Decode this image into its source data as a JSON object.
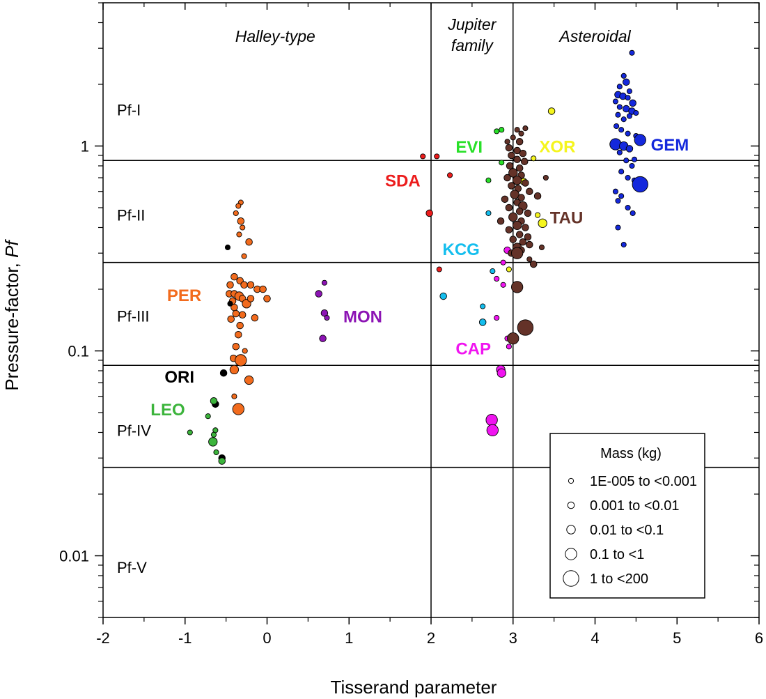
{
  "chart_data": {
    "type": "scatter",
    "xlabel": "Tisserand parameter",
    "ylabel_prefix": "Pressure-factor, ",
    "ylabel_italic": "Pf",
    "xlim": [
      -2,
      6
    ],
    "ylim": [
      0.005,
      5
    ],
    "yscale": "log",
    "xticks": [
      -2,
      -1,
      0,
      1,
      2,
      3,
      4,
      5,
      6
    ],
    "xtick_labels": [
      "-2",
      "-1",
      "0",
      "1",
      "2",
      "3",
      "4",
      "5",
      "6"
    ],
    "yticks": [
      0.01,
      0.1,
      1
    ],
    "ytick_labels": [
      "0.01",
      "0.1",
      "1"
    ],
    "vertical_lines": [
      2,
      3
    ],
    "horizontal_lines": [
      0.85,
      0.27,
      0.085,
      0.027
    ],
    "regions": [
      {
        "label": "Halley-type",
        "x": 0.1
      },
      {
        "label": "Jupiter family",
        "x": 2.5,
        "multiline": [
          "Jupiter",
          "family"
        ]
      },
      {
        "label": "Asteroidal",
        "x": 4.0
      }
    ],
    "pf_classes": [
      {
        "label": "Pf-I",
        "y": 1.5
      },
      {
        "label": "Pf-II",
        "y": 0.46
      },
      {
        "label": "Pf-III",
        "y": 0.148
      },
      {
        "label": "Pf-IV",
        "y": 0.041
      },
      {
        "label": "Pf-V",
        "y": 0.0088
      }
    ],
    "legend": {
      "title": "Mass (kg)",
      "entries": [
        {
          "label": "1E-005 to <0.001",
          "size_class": 1
        },
        {
          "label": "0.001 to <0.01",
          "size_class": 2
        },
        {
          "label": "0.01 to <0.1",
          "size_class": 3
        },
        {
          "label": "0.1 to <1",
          "size_class": 4
        },
        {
          "label": "1 to <200",
          "size_class": 5
        }
      ]
    },
    "series": [
      {
        "name": "PER",
        "color": "#f26b1d",
        "label_pos": [
          -1.22,
          0.188
        ],
        "points": [
          [
            -0.32,
            0.53,
            1
          ],
          [
            -0.35,
            0.51,
            1
          ],
          [
            -0.38,
            0.47,
            1
          ],
          [
            -0.32,
            0.43,
            2
          ],
          [
            -0.3,
            0.4,
            1
          ],
          [
            -0.34,
            0.37,
            1
          ],
          [
            -0.22,
            0.34,
            2
          ],
          [
            -0.28,
            0.29,
            1
          ],
          [
            -0.4,
            0.23,
            2
          ],
          [
            -0.45,
            0.21,
            2
          ],
          [
            -0.33,
            0.22,
            2
          ],
          [
            -0.28,
            0.21,
            2
          ],
          [
            -0.2,
            0.21,
            2
          ],
          [
            -0.12,
            0.2,
            2
          ],
          [
            -0.05,
            0.2,
            2
          ],
          [
            -0.46,
            0.19,
            2
          ],
          [
            -0.4,
            0.19,
            2
          ],
          [
            -0.34,
            0.185,
            3
          ],
          [
            -0.3,
            0.18,
            2
          ],
          [
            -0.42,
            0.175,
            2
          ],
          [
            -0.25,
            0.17,
            3
          ],
          [
            -0.4,
            0.163,
            2
          ],
          [
            -0.38,
            0.152,
            2
          ],
          [
            -0.3,
            0.15,
            2
          ],
          [
            -0.15,
            0.145,
            2
          ],
          [
            -0.44,
            0.143,
            2
          ],
          [
            -0.33,
            0.133,
            2
          ],
          [
            -0.35,
            0.12,
            2
          ],
          [
            -0.38,
            0.105,
            2
          ],
          [
            -0.27,
            0.1,
            1
          ],
          [
            -0.41,
            0.092,
            2
          ],
          [
            -0.32,
            0.09,
            4
          ],
          [
            -0.4,
            0.081,
            3
          ],
          [
            -0.22,
            0.072,
            3
          ],
          [
            -0.35,
            0.052,
            4
          ],
          [
            0.0,
            0.18,
            2
          ],
          [
            -0.2,
            0.18,
            2
          ],
          [
            -0.4,
            0.06,
            1
          ]
        ]
      },
      {
        "name": "ORI",
        "color": "#000000",
        "label_pos": [
          -1.25,
          0.075
        ],
        "points": [
          [
            -0.48,
            0.32,
            1
          ],
          [
            -0.45,
            0.17,
            1
          ],
          [
            -0.53,
            0.078,
            2
          ],
          [
            -0.63,
            0.055,
            2
          ],
          [
            -0.55,
            0.03,
            2
          ]
        ]
      },
      {
        "name": "LEO",
        "color": "#3cb43c",
        "label_pos": [
          -1.42,
          0.052
        ],
        "points": [
          [
            -0.65,
            0.057,
            2
          ],
          [
            -0.72,
            0.048,
            1
          ],
          [
            -0.63,
            0.041,
            1
          ],
          [
            -0.65,
            0.039,
            1
          ],
          [
            -0.94,
            0.04,
            1
          ],
          [
            -0.66,
            0.036,
            3
          ],
          [
            -0.62,
            0.032,
            1
          ],
          [
            -0.55,
            0.029,
            2
          ]
        ]
      },
      {
        "name": "MON",
        "color": "#8c14b4",
        "label_pos": [
          0.93,
          0.148
        ],
        "points": [
          [
            0.7,
            0.215,
            1
          ],
          [
            0.63,
            0.19,
            2
          ],
          [
            0.7,
            0.153,
            2
          ],
          [
            0.73,
            0.145,
            1
          ],
          [
            0.68,
            0.115,
            2
          ]
        ]
      },
      {
        "name": "SDA",
        "color": "#ec1c1c",
        "label_pos": [
          1.44,
          0.68
        ],
        "points": [
          [
            1.9,
            0.89,
            1
          ],
          [
            2.07,
            0.89,
            1
          ],
          [
            2.23,
            0.72,
            1
          ],
          [
            1.98,
            0.47,
            2
          ],
          [
            2.1,
            0.25,
            1
          ]
        ]
      },
      {
        "name": "EVI",
        "color": "#28e028",
        "label_pos": [
          2.3,
          0.995
        ],
        "points": [
          [
            2.8,
            1.18,
            1
          ],
          [
            2.86,
            1.2,
            1
          ],
          [
            2.86,
            0.83,
            1
          ],
          [
            2.7,
            0.68,
            1
          ]
        ]
      },
      {
        "name": "XOR",
        "color": "#f5f51e",
        "label_pos": [
          3.32,
          1.0
        ],
        "points": [
          [
            3.47,
            1.48,
            2
          ],
          [
            3.25,
            0.87,
            1
          ],
          [
            3.13,
            0.67,
            2
          ],
          [
            3.3,
            0.46,
            1
          ],
          [
            3.36,
            0.42,
            3
          ],
          [
            2.95,
            0.25,
            1
          ]
        ]
      },
      {
        "name": "GEM",
        "color": "#1428dc",
        "label_pos": [
          4.68,
          1.02
        ],
        "points": [
          [
            4.45,
            2.85,
            1
          ],
          [
            4.35,
            2.2,
            1
          ],
          [
            4.38,
            2.05,
            2
          ],
          [
            4.3,
            1.95,
            1
          ],
          [
            4.42,
            1.85,
            1
          ],
          [
            4.28,
            1.78,
            2
          ],
          [
            4.34,
            1.75,
            2
          ],
          [
            4.4,
            1.72,
            1
          ],
          [
            4.25,
            1.65,
            1
          ],
          [
            4.46,
            1.62,
            2
          ],
          [
            4.3,
            1.55,
            1
          ],
          [
            4.38,
            1.52,
            2
          ],
          [
            4.45,
            1.48,
            2
          ],
          [
            4.5,
            1.45,
            1
          ],
          [
            4.28,
            1.42,
            1
          ],
          [
            4.35,
            1.35,
            1
          ],
          [
            4.42,
            1.4,
            1
          ],
          [
            4.26,
            1.25,
            1
          ],
          [
            4.32,
            1.2,
            1
          ],
          [
            4.4,
            1.15,
            1
          ],
          [
            4.5,
            1.12,
            1
          ],
          [
            4.55,
            1.07,
            4
          ],
          [
            4.25,
            1.02,
            4
          ],
          [
            4.35,
            1.0,
            3
          ],
          [
            4.42,
            0.97,
            2
          ],
          [
            4.3,
            0.93,
            1
          ],
          [
            4.48,
            0.86,
            1
          ],
          [
            4.38,
            0.85,
            1
          ],
          [
            4.45,
            0.8,
            1
          ],
          [
            4.32,
            0.75,
            1
          ],
          [
            4.4,
            0.7,
            1
          ],
          [
            4.48,
            0.68,
            1
          ],
          [
            4.55,
            0.65,
            5
          ],
          [
            4.25,
            0.6,
            1
          ],
          [
            4.32,
            0.57,
            1
          ],
          [
            4.28,
            0.54,
            1
          ],
          [
            4.4,
            0.5,
            1
          ],
          [
            4.46,
            0.47,
            1
          ],
          [
            4.28,
            0.4,
            1
          ],
          [
            4.35,
            0.33,
            1
          ]
        ]
      },
      {
        "name": "KCG",
        "color": "#14beee",
        "label_pos": [
          2.14,
          0.315
        ],
        "points": [
          [
            2.7,
            0.47,
            1
          ],
          [
            2.75,
            0.245,
            1
          ],
          [
            2.15,
            0.185,
            2
          ],
          [
            2.63,
            0.165,
            1
          ],
          [
            2.63,
            0.138,
            2
          ]
        ]
      },
      {
        "name": "CAP",
        "color": "#f014f0",
        "label_pos": [
          2.3,
          0.103
        ],
        "points": [
          [
            2.93,
            0.31,
            2
          ],
          [
            2.88,
            0.27,
            1
          ],
          [
            2.8,
            0.225,
            1
          ],
          [
            2.88,
            0.21,
            1
          ],
          [
            2.8,
            0.145,
            1
          ],
          [
            2.93,
            0.115,
            1
          ],
          [
            2.95,
            0.105,
            1
          ],
          [
            2.85,
            0.081,
            3
          ],
          [
            2.86,
            0.078,
            3
          ],
          [
            2.74,
            0.046,
            4
          ],
          [
            2.75,
            0.041,
            4
          ]
        ]
      },
      {
        "name": "TAU",
        "color": "#643228",
        "label_pos": [
          3.45,
          0.45
        ],
        "points": [
          [
            3.15,
            1.22,
            1
          ],
          [
            3.05,
            1.2,
            1
          ],
          [
            3.1,
            1.15,
            1
          ],
          [
            3.0,
            1.1,
            1
          ],
          [
            2.93,
            1.05,
            1
          ],
          [
            3.08,
            1.05,
            2
          ],
          [
            2.95,
            0.98,
            2
          ],
          [
            3.05,
            0.95,
            2
          ],
          [
            3.12,
            0.92,
            2
          ],
          [
            2.98,
            0.9,
            2
          ],
          [
            3.05,
            0.86,
            2
          ],
          [
            3.14,
            0.84,
            2
          ],
          [
            2.96,
            0.8,
            2
          ],
          [
            3.08,
            0.78,
            2
          ],
          [
            3.0,
            0.74,
            3
          ],
          [
            3.1,
            0.72,
            2
          ],
          [
            2.93,
            0.7,
            2
          ],
          [
            3.05,
            0.68,
            3
          ],
          [
            3.15,
            0.66,
            2
          ],
          [
            2.98,
            0.64,
            2
          ],
          [
            3.06,
            0.62,
            2
          ],
          [
            3.2,
            0.6,
            2
          ],
          [
            3.02,
            0.58,
            3
          ],
          [
            3.1,
            0.56,
            2
          ],
          [
            2.9,
            0.55,
            2
          ],
          [
            3.3,
            0.57,
            2
          ],
          [
            3.05,
            0.53,
            2
          ],
          [
            3.12,
            0.51,
            3
          ],
          [
            2.95,
            0.5,
            2
          ],
          [
            3.08,
            0.48,
            2
          ],
          [
            3.18,
            0.47,
            2
          ],
          [
            3.0,
            0.45,
            3
          ],
          [
            3.1,
            0.43,
            2
          ],
          [
            2.85,
            0.43,
            2
          ],
          [
            3.05,
            0.41,
            3
          ],
          [
            3.15,
            0.4,
            2
          ],
          [
            2.95,
            0.39,
            2
          ],
          [
            3.08,
            0.37,
            2
          ],
          [
            3.18,
            0.36,
            2
          ],
          [
            3.0,
            0.35,
            2
          ],
          [
            3.12,
            0.34,
            2
          ],
          [
            3.2,
            0.33,
            2
          ],
          [
            3.05,
            0.32,
            3
          ],
          [
            3.35,
            0.32,
            1
          ],
          [
            3.1,
            0.31,
            2
          ],
          [
            2.98,
            0.3,
            2
          ],
          [
            3.05,
            0.3,
            4
          ],
          [
            3.2,
            0.28,
            1
          ],
          [
            3.25,
            0.265,
            2
          ],
          [
            3.05,
            0.205,
            4
          ],
          [
            3.15,
            0.13,
            5
          ],
          [
            3.0,
            0.115,
            4
          ],
          [
            3.4,
            0.7,
            1
          ]
        ]
      }
    ]
  }
}
